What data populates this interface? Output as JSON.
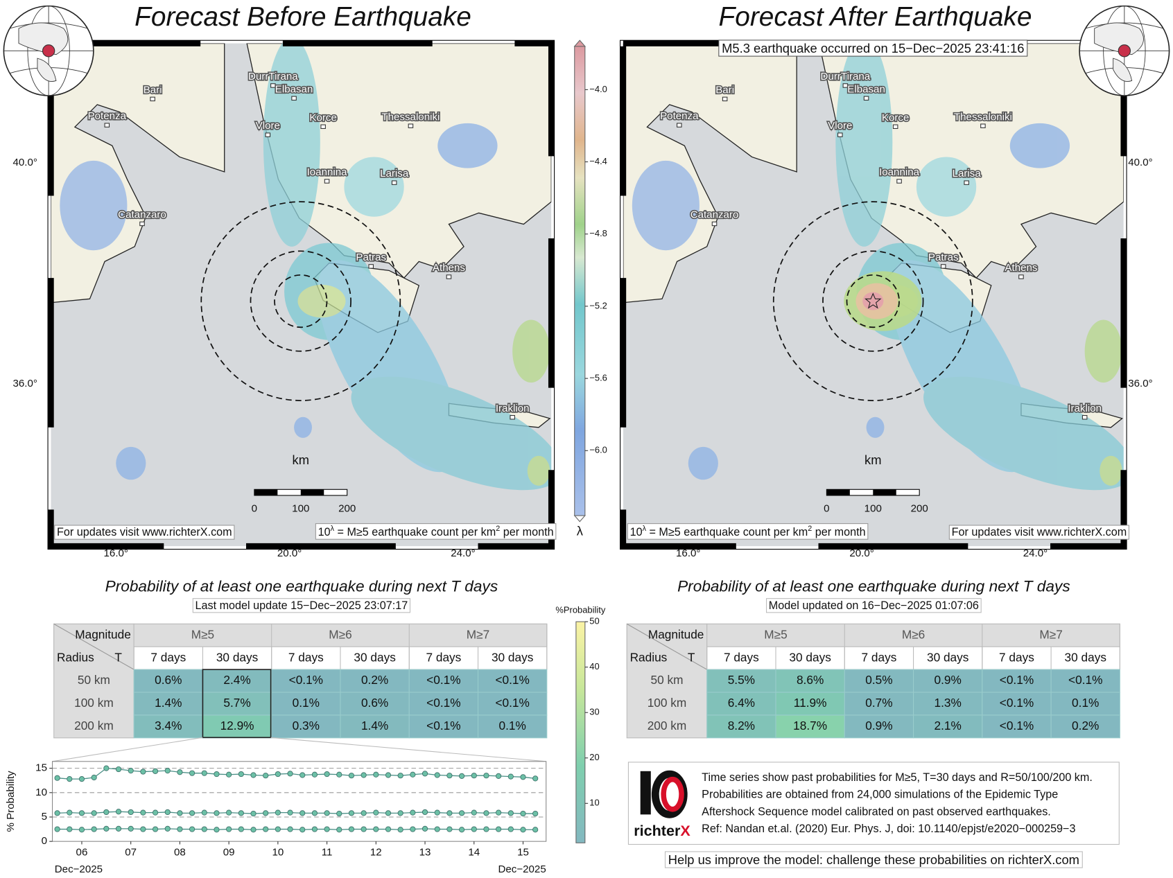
{
  "left_panel": {
    "title": "Forecast Before Earthquake",
    "cities": [
      "Bari",
      "Potenza",
      "DurrTirana",
      "Elbasan",
      "Korce",
      "Thessaloniki",
      "Vlore",
      "Ioannina",
      "Larisa",
      "Catanzaro",
      "Patras",
      "Athens",
      "Iraklion"
    ],
    "lat_labels": [
      "40.0°",
      "36.0°"
    ],
    "lon_labels": [
      "16.0°",
      "20.0°",
      "24.0°"
    ],
    "scale_unit": "km",
    "scale_labels": [
      "0",
      "100",
      "200"
    ],
    "footer_link": "For updates visit www.richterX.com",
    "legend_note": [
      "10",
      "λ",
      " = M≥5 earthquake count per km",
      "2",
      " per month"
    ],
    "table": {
      "caption": "Probability of at least one earthquake during next T days",
      "update": "Last model update 15−Dec−2025 23:07:17",
      "header1": [
        "Magnitude",
        "M≥5",
        "M≥6",
        "M≥7"
      ],
      "header2": [
        "Radius",
        "T",
        "7 days",
        "30 days",
        "7 days",
        "30 days",
        "7 days",
        "30 days"
      ],
      "rows": [
        [
          "50 km",
          "0.6%",
          "2.4%",
          "<0.1%",
          "0.2%",
          "<0.1%",
          "<0.1%"
        ],
        [
          "100 km",
          "1.4%",
          "5.7%",
          "0.1%",
          "0.6%",
          "<0.1%",
          "<0.1%"
        ],
        [
          "200 km",
          "3.4%",
          "12.9%",
          "0.3%",
          "1.4%",
          "<0.1%",
          "0.1%"
        ]
      ]
    }
  },
  "right_panel": {
    "title": "Forecast After Earthquake",
    "event": "M5.3 earthquake occurred on 15−Dec−2025 23:41:16",
    "cities": [
      "Bari",
      "Potenza",
      "DurrTirana",
      "Elbasan",
      "Korce",
      "Thessaloniki",
      "Vlore",
      "Ioannina",
      "Larisa",
      "Catanzaro",
      "Patras",
      "Athens",
      "Iraklion"
    ],
    "lat_labels": [
      "40.0°",
      "36.0°"
    ],
    "lon_labels": [
      "16.0°",
      "20.0°",
      "24.0°"
    ],
    "scale_unit": "km",
    "scale_labels": [
      "0",
      "100",
      "200"
    ],
    "footer_link": "For updates visit www.richterX.com",
    "legend_note": [
      "10",
      "λ",
      " = M≥5 earthquake count per km",
      "2",
      " per month"
    ],
    "table": {
      "caption": "Probability of at least one earthquake during next T days",
      "update": "Model updated on 16−Dec−2025 01:07:06",
      "header1": [
        "Magnitude",
        "M≥5",
        "M≥6",
        "M≥7"
      ],
      "header2": [
        "Radius",
        "T",
        "7 days",
        "30 days",
        "7 days",
        "30 days",
        "7 days",
        "30 days"
      ],
      "rows": [
        [
          "50 km",
          "5.5%",
          "8.6%",
          "0.5%",
          "0.9%",
          "<0.1%",
          "<0.1%"
        ],
        [
          "100 km",
          "6.4%",
          "11.9%",
          "0.7%",
          "1.3%",
          "<0.1%",
          "0.1%"
        ],
        [
          "200 km",
          "8.2%",
          "18.7%",
          "0.9%",
          "2.1%",
          "<0.1%",
          "0.2%"
        ]
      ]
    }
  },
  "info": {
    "lines": [
      "Time series show past probabilities for M≥5, T=30 days and R=50/100/200 km.",
      "Probabilities are obtained from 24,000 simulations of the Epidemic Type",
      "Aftershock Sequence model calibrated on past observed earthquakes.",
      "Ref: Nandan et.al. (2020) Eur. Phys. J, doi: 10.1140/epjst/e2020−000259−3"
    ],
    "logo_text": [
      "richter",
      "X"
    ],
    "help": "Help us improve the model: challenge these probabilities on richterX.com"
  },
  "chart_data": [
    {
      "type": "line",
      "y_label": "% Probability",
      "date_labels": [
        "Dec−2025",
        "Dec−2025"
      ],
      "x": [
        5.5,
        5.75,
        6,
        6.25,
        6.5,
        6.75,
        7,
        7.25,
        7.5,
        7.75,
        8,
        8.25,
        8.5,
        8.75,
        9,
        9.25,
        9.5,
        9.75,
        10,
        10.25,
        10.5,
        10.75,
        11,
        11.25,
        11.5,
        11.75,
        12,
        12.25,
        12.5,
        12.75,
        13,
        13.25,
        13.5,
        13.75,
        14,
        14.25,
        14.5,
        14.75,
        15,
        15.25
      ],
      "xlim": [
        5.4,
        15.47
      ],
      "xticks": [
        {
          "value": 6,
          "label": "06"
        },
        {
          "value": 7,
          "label": "07"
        },
        {
          "value": 8,
          "label": "08"
        },
        {
          "value": 9,
          "label": "09"
        },
        10,
        11,
        12,
        13,
        14,
        15
      ],
      "ylim": [
        0,
        16.4
      ],
      "yticks": [
        0,
        5,
        10,
        15
      ],
      "grid": true,
      "series": [
        {
          "color": "#6cc0a6",
          "values": [
            13.0,
            12.8,
            12.8,
            13.1,
            15.0,
            14.8,
            14.5,
            14.3,
            14.4,
            14.5,
            14.2,
            14.0,
            14.0,
            13.8,
            13.7,
            13.8,
            13.6,
            13.5,
            13.8,
            13.9,
            13.6,
            13.7,
            13.8,
            13.7,
            13.5,
            13.6,
            13.7,
            13.6,
            13.5,
            13.7,
            13.9,
            13.6,
            13.5,
            13.4,
            13.5,
            13.5,
            13.4,
            13.3,
            13.2,
            12.9
          ]
        },
        {
          "color": "#6cc0a6",
          "values": [
            5.8,
            5.9,
            5.8,
            5.8,
            6.0,
            6.1,
            6.0,
            5.9,
            5.9,
            6.0,
            5.8,
            5.8,
            5.9,
            5.8,
            5.9,
            5.8,
            5.7,
            5.8,
            5.9,
            5.9,
            5.8,
            5.8,
            5.8,
            5.7,
            5.8,
            5.8,
            5.9,
            5.8,
            5.8,
            5.9,
            6.0,
            5.9,
            5.8,
            5.8,
            5.9,
            5.8,
            5.9,
            5.8,
            5.7,
            5.7
          ]
        },
        {
          "color": "#6cc0a6",
          "values": [
            2.5,
            2.5,
            2.4,
            2.5,
            2.6,
            2.6,
            2.6,
            2.5,
            2.5,
            2.6,
            2.5,
            2.5,
            2.5,
            2.4,
            2.5,
            2.5,
            2.4,
            2.5,
            2.5,
            2.5,
            2.4,
            2.5,
            2.5,
            2.4,
            2.5,
            2.5,
            2.5,
            2.5,
            2.4,
            2.5,
            2.6,
            2.5,
            2.5,
            2.4,
            2.5,
            2.5,
            2.5,
            2.5,
            2.4,
            2.4
          ]
        }
      ]
    },
    {
      "type": "colorbar",
      "label": "λ",
      "ylim": [
        -6.36,
        -3.76
      ],
      "yticks": [
        {
          "value": -4.0,
          "label": "−4.0"
        },
        {
          "value": -4.4,
          "label": "−4.4"
        },
        {
          "value": -4.8,
          "label": "−4.8"
        },
        {
          "value": -5.2,
          "label": "−5.2"
        },
        {
          "value": -5.6,
          "label": "−5.6"
        },
        {
          "value": -6.0,
          "label": "−6.0"
        }
      ]
    },
    {
      "type": "colorbar",
      "label": "%Probability",
      "ylim": [
        1.3,
        50
      ],
      "yticks": [
        10,
        20,
        30,
        40,
        50
      ]
    }
  ]
}
